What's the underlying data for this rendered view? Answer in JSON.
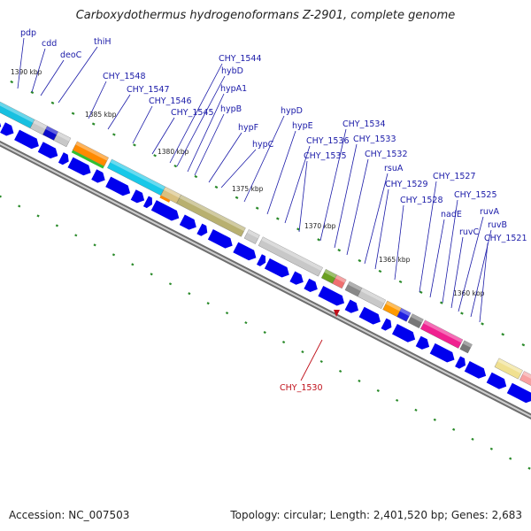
{
  "title": "Carboxydothermus hydrogenoformans Z-2901, complete genome",
  "footer": {
    "accession": "Accession: NC_007503",
    "summary": "Topology: circular; Length: 2,401,520 bp; Genes: 2,683"
  },
  "colors": {
    "label": "#1a1aa8",
    "highlight": "#c0101a",
    "forward_gene": "#0000ee",
    "tick": "#2a8a2a",
    "ring": "#888888"
  },
  "scale_labels": [
    "1390 kbp",
    "1385 kbp",
    "1380 kbp",
    "1375 kbp",
    "1370 kbp",
    "1365 kbp",
    "1360 kbp"
  ],
  "gene_labels": [
    "pdp",
    "cdd",
    "deoC",
    "thiH",
    "CHY_1548",
    "CHY_1547",
    "CHY_1546",
    "CHY_1545",
    "CHY_1544",
    "hybD",
    "hypA1",
    "hypB",
    "hypF",
    "hypC",
    "hypD",
    "hypE",
    "CHY_1536",
    "CHY_1535",
    "CHY_1534",
    "CHY_1533",
    "CHY_1532",
    "rsuA",
    "CHY_1529",
    "CHY_1528",
    "CHY_1527",
    "nadE",
    "CHY_1525",
    "ruvC",
    "ruvA",
    "ruvB",
    "CHY_1521"
  ],
  "highlight_gene": "CHY_1530"
}
